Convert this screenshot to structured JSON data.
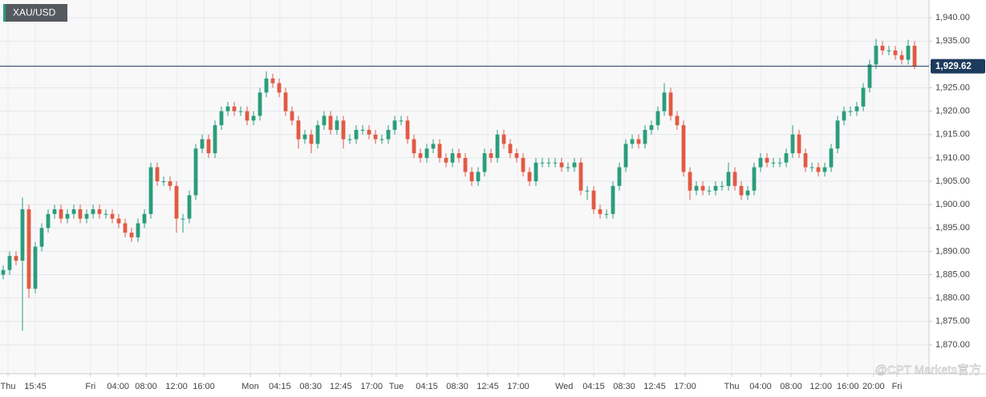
{
  "chart_data": {
    "type": "candlestick",
    "title": "XAU/USD",
    "watermark": "@CPT Markets官方",
    "up_color": "#2a9d7c",
    "down_color": "#e25a44",
    "grid": true,
    "last_price": {
      "value": 1929.62,
      "label": "1,929.62"
    },
    "last_price_color": "#1d3b5c",
    "ylim": [
      1863.8,
      1943.8
    ],
    "yticks": [
      {
        "value": 1870,
        "label": "1,870.00"
      },
      {
        "value": 1875,
        "label": "1,875.00"
      },
      {
        "value": 1880,
        "label": "1,880.00"
      },
      {
        "value": 1885,
        "label": "1,885.00"
      },
      {
        "value": 1890,
        "label": "1,890.00"
      },
      {
        "value": 1895,
        "label": "1,895.00"
      },
      {
        "value": 1900,
        "label": "1,900.00"
      },
      {
        "value": 1905,
        "label": "1,905.00"
      },
      {
        "value": 1910,
        "label": "1,910.00"
      },
      {
        "value": 1915,
        "label": "1,915.00"
      },
      {
        "value": 1920,
        "label": "1,920.00"
      },
      {
        "value": 1925,
        "label": "1,925.00"
      },
      {
        "value": 1930,
        "label": "1,930.00"
      },
      {
        "value": 1935,
        "label": "1,935.00"
      },
      {
        "value": 1940,
        "label": "1,940.00"
      }
    ],
    "xlim": [
      -0.5,
      144.25
    ],
    "xticks": [
      {
        "value": 0.75,
        "label": "Thu"
      },
      {
        "value": 5,
        "label": "15:45"
      },
      {
        "value": 13.6,
        "label": "Fri"
      },
      {
        "value": 17.9,
        "label": "04:00"
      },
      {
        "value": 22.25,
        "label": "08:00"
      },
      {
        "value": 27,
        "label": "12:00"
      },
      {
        "value": 31.25,
        "label": "16:00"
      },
      {
        "value": 38.5,
        "label": "Mon"
      },
      {
        "value": 43.1,
        "label": "04:15"
      },
      {
        "value": 47.9,
        "label": "08:30"
      },
      {
        "value": 52.6,
        "label": "12:45"
      },
      {
        "value": 57.4,
        "label": "17:00"
      },
      {
        "value": 61.25,
        "label": "Tue"
      },
      {
        "value": 66,
        "label": "04:15"
      },
      {
        "value": 70.75,
        "label": "08:30"
      },
      {
        "value": 75.5,
        "label": "12:45"
      },
      {
        "value": 80.25,
        "label": "17:00"
      },
      {
        "value": 87.4,
        "label": "Wed"
      },
      {
        "value": 92,
        "label": "04:15"
      },
      {
        "value": 96.75,
        "label": "08:30"
      },
      {
        "value": 101.5,
        "label": "12:45"
      },
      {
        "value": 106.25,
        "label": "17:00"
      },
      {
        "value": 113.5,
        "label": "Thu"
      },
      {
        "value": 118,
        "label": "04:00"
      },
      {
        "value": 122.75,
        "label": "08:00"
      },
      {
        "value": 127.4,
        "label": "12:00"
      },
      {
        "value": 131.6,
        "label": "16:00"
      },
      {
        "value": 135.6,
        "label": "20:00"
      },
      {
        "value": 139.25,
        "label": "Fri"
      }
    ],
    "open": [
      1885,
      1886,
      1889,
      1888,
      1899,
      1882,
      1891,
      1895,
      1898,
      1899,
      1897,
      1898,
      1899,
      1897,
      1898,
      1899,
      1898,
      1898,
      1897,
      1896,
      1894,
      1893,
      1896,
      1898,
      1908,
      1905,
      1905,
      1904,
      1897,
      1897,
      1902,
      1912,
      1914,
      1911,
      1917,
      1920,
      1921,
      1920,
      1920,
      1918,
      1919,
      1924,
      1927,
      1926,
      1924,
      1920,
      1918,
      1914,
      1915,
      1913,
      1917,
      1919,
      1916,
      1918,
      1914,
      1914,
      1916,
      1916,
      1915,
      1914,
      1914,
      1916,
      1918,
      1918,
      1914,
      1911,
      1910,
      1912,
      1913,
      1910,
      1909,
      1911,
      1910,
      1907,
      1905,
      1907,
      1911,
      1910,
      1915,
      1913,
      1911,
      1910,
      1907,
      1905,
      1909,
      1909,
      1909,
      1909,
      1908,
      1908,
      1909,
      1903,
      1903,
      1899,
      1898,
      1898,
      1904,
      1908,
      1913,
      1914,
      1913,
      1916,
      1917,
      1920,
      1924,
      1919,
      1917,
      1907,
      1903,
      1904,
      1903,
      1903,
      1904,
      1904,
      1907,
      1904,
      1902,
      1903,
      1908,
      1910,
      1909,
      1909,
      1909,
      1911,
      1915,
      1911,
      1908,
      1908,
      1907,
      1908,
      1912,
      1918,
      1920,
      1920,
      1921,
      1925,
      1930,
      1934,
      1933,
      1933,
      1932,
      1931,
      1934
    ],
    "high": [
      1887,
      1890,
      1890,
      1901.5,
      1900,
      1892,
      1896,
      1899,
      1900,
      1900,
      1899,
      1900,
      1900,
      1899,
      1900,
      1900,
      1899,
      1899,
      1898,
      1897,
      1895,
      1897,
      1899,
      1909,
      1909,
      1906,
      1906,
      1905,
      1898,
      1903,
      1913,
      1915,
      1915,
      1918,
      1921,
      1922,
      1922,
      1921,
      1921,
      1920,
      1925,
      1928.5,
      1928,
      1927,
      1925,
      1921,
      1919,
      1916,
      1916,
      1918,
      1920,
      1920,
      1919,
      1919,
      1915,
      1917,
      1917,
      1917,
      1916,
      1915,
      1917,
      1919,
      1919,
      1919,
      1915,
      1912,
      1913,
      1914,
      1914,
      1911,
      1912,
      1912,
      1911,
      1908,
      1908,
      1912,
      1912,
      1916,
      1916,
      1914,
      1912,
      1911,
      1908,
      1910,
      1910,
      1910,
      1910,
      1910,
      1909,
      1910,
      1910,
      1904,
      1904,
      1900,
      1899,
      1905,
      1909,
      1914,
      1915,
      1915,
      1917,
      1918,
      1921,
      1926,
      1925,
      1920,
      1918,
      1908,
      1905,
      1905,
      1904,
      1905,
      1905,
      1909,
      1908,
      1905,
      1904,
      1909,
      1911,
      1911,
      1910,
      1910,
      1912,
      1917,
      1916,
      1912,
      1909,
      1909,
      1909,
      1913,
      1919,
      1921,
      1921,
      1922,
      1926,
      1931,
      1935.5,
      1935,
      1934,
      1934,
      1933,
      1935.3,
      1935
    ],
    "low": [
      1884,
      1885,
      1887,
      1873,
      1880,
      1881,
      1890,
      1894,
      1897,
      1896,
      1896,
      1897,
      1896,
      1896,
      1897,
      1897,
      1897,
      1896,
      1895,
      1893,
      1892,
      1892,
      1895,
      1897,
      1904,
      1904,
      1903,
      1894,
      1894,
      1896,
      1901,
      1911,
      1910,
      1910,
      1916,
      1919,
      1919,
      1919,
      1917,
      1917,
      1918,
      1923,
      1925,
      1923,
      1919,
      1917,
      1912,
      1913,
      1911,
      1912,
      1916,
      1915,
      1915,
      1912,
      1913,
      1913,
      1915,
      1914,
      1913,
      1913,
      1913,
      1915,
      1917,
      1913,
      1910,
      1909,
      1909,
      1911,
      1909,
      1908,
      1908,
      1909,
      1906,
      1904,
      1904,
      1906,
      1909,
      1909,
      1912,
      1910,
      1909,
      1906,
      1904,
      1904,
      1908,
      1908,
      1908,
      1907,
      1907,
      1907,
      1902,
      1901,
      1898,
      1897,
      1897,
      1897,
      1903,
      1907,
      1912,
      1912,
      1912,
      1915,
      1916,
      1919,
      1918,
      1916,
      1906,
      1901,
      1902,
      1902,
      1902,
      1902,
      1903,
      1903,
      1903,
      1901,
      1901,
      1902,
      1907,
      1908,
      1908,
      1908,
      1908,
      1910,
      1910,
      1907,
      1907,
      1906,
      1906,
      1907,
      1911,
      1917,
      1919,
      1919,
      1920,
      1924,
      1929,
      1932,
      1932,
      1931,
      1930,
      1930,
      1929
    ],
    "close": [
      1886,
      1889,
      1888,
      1899,
      1882,
      1891,
      1895,
      1898,
      1899,
      1897,
      1898,
      1899,
      1897,
      1898,
      1899,
      1898,
      1898,
      1897,
      1896,
      1894,
      1893,
      1896,
      1898,
      1908,
      1905,
      1905,
      1904,
      1897,
      1897,
      1902,
      1912,
      1914,
      1911,
      1917,
      1920,
      1921,
      1920,
      1920,
      1918,
      1919,
      1924,
      1927,
      1926,
      1924,
      1920,
      1918,
      1914,
      1915,
      1913,
      1917,
      1919,
      1916,
      1918,
      1914,
      1914,
      1916,
      1916,
      1915,
      1914,
      1914,
      1916,
      1918,
      1918,
      1914,
      1911,
      1910,
      1912,
      1913,
      1910,
      1909,
      1911,
      1910,
      1907,
      1905,
      1907,
      1911,
      1910,
      1915,
      1913,
      1911,
      1910,
      1907,
      1905,
      1909,
      1909,
      1909,
      1909,
      1908,
      1908,
      1909,
      1903,
      1903,
      1899,
      1898,
      1898,
      1904,
      1908,
      1913,
      1914,
      1913,
      1916,
      1917,
      1920,
      1924,
      1919,
      1917,
      1907,
      1903,
      1904,
      1903,
      1903,
      1904,
      1904,
      1907,
      1904,
      1902,
      1903,
      1908,
      1910,
      1909,
      1909,
      1909,
      1911,
      1915,
      1911,
      1908,
      1908,
      1907,
      1908,
      1912,
      1918,
      1920,
      1920,
      1921,
      1925,
      1930,
      1934,
      1933,
      1933,
      1932,
      1931,
      1934,
      1929.62
    ]
  }
}
